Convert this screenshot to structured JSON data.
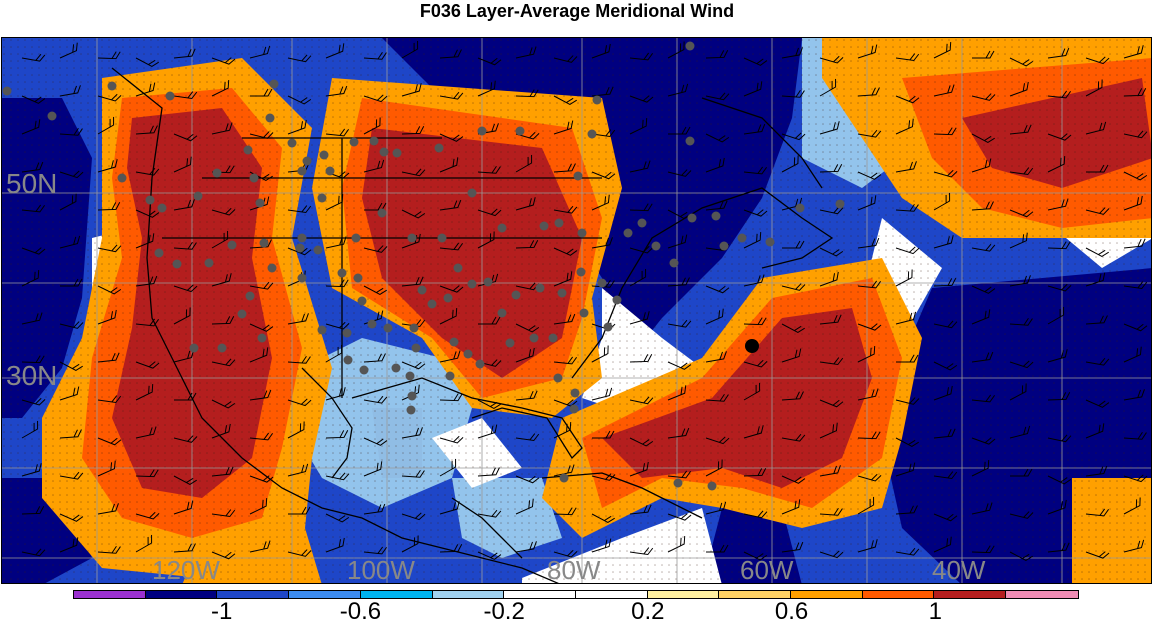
{
  "title": "F036 Layer-Average Meridional Wind",
  "lat_labels": [
    "50N",
    "30N"
  ],
  "lon_labels": [
    "120W",
    "100W",
    "80W",
    "60W",
    "40W"
  ],
  "colorbar": {
    "colors": [
      "#9b30d0",
      "#000080",
      "#1e46c8",
      "#3c8cf0",
      "#00b4f0",
      "#a0d2f0",
      "#ffffff",
      "#ffffff",
      "#fff0a0",
      "#ffd264",
      "#ffa000",
      "#ff5a00",
      "#b41e1e",
      "#f08cb4"
    ],
    "tick_labels": [
      "-1",
      "-0.6",
      "-0.2",
      "0.2",
      "0.6",
      "1"
    ]
  }
}
